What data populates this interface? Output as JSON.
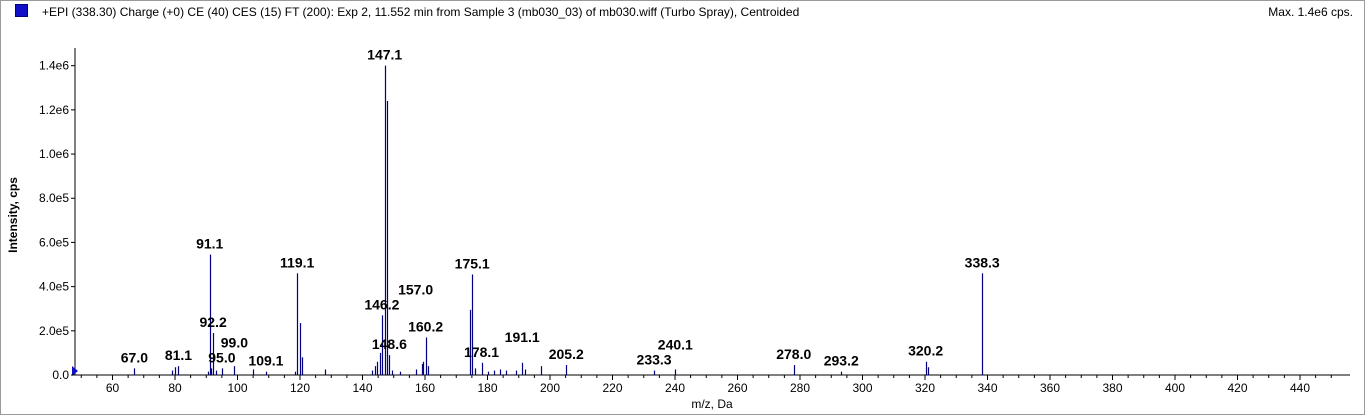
{
  "header": {
    "title": "+EPI (338.30) Charge (+0) CE (40) CES (15) FT (200): Exp 2, 11.552 min from Sample 3 (mb030_03) of mb030.wiff (Turbo Spray), Centroided",
    "max_text": "Max. 1.4e6 cps."
  },
  "colors": {
    "spectrum": "#000080",
    "legend": "#1010c8",
    "frame": "#9a9a9a"
  },
  "chart_data": {
    "type": "bar",
    "title": "+EPI (338.30) Charge (+0) CE (40) CES (15) FT (200): Exp 2, 11.552 min from Sample 3 (mb030_03) of mb030.wiff (Turbo Spray), Centroided",
    "xlabel": "m/z, Da",
    "ylabel": "Intensity, cps",
    "xlim": [
      48,
      456
    ],
    "ylim": [
      0,
      1480000.0
    ],
    "x_ticks": [
      60,
      80,
      100,
      120,
      140,
      160,
      180,
      200,
      220,
      240,
      260,
      280,
      300,
      320,
      340,
      360,
      380,
      400,
      420,
      440
    ],
    "x_tick_labels": [
      "60",
      "80",
      "100",
      "120",
      "140",
      "160",
      "180",
      "200",
      "220",
      "240",
      "260",
      "280",
      "300",
      "320",
      "340",
      "360",
      "380",
      "400",
      "420",
      "440"
    ],
    "y_ticks": [
      0,
      200000,
      400000,
      600000,
      800000,
      1000000,
      1200000,
      1400000
    ],
    "y_tick_labels": [
      "0.0",
      "2.0e5",
      "4.0e5",
      "6.0e5",
      "8.0e5",
      "1.0e6",
      "1.2e6",
      "1.4e6"
    ],
    "grid": false,
    "peaks": [
      {
        "mz": 67.0,
        "intensity": 30000
      },
      {
        "mz": 79.0,
        "intensity": 20000
      },
      {
        "mz": 80.0,
        "intensity": 35000
      },
      {
        "mz": 81.1,
        "intensity": 40000
      },
      {
        "mz": 90.5,
        "intensity": 15000
      },
      {
        "mz": 91.1,
        "intensity": 545000
      },
      {
        "mz": 91.6,
        "intensity": 30000
      },
      {
        "mz": 92.2,
        "intensity": 190000
      },
      {
        "mz": 93.0,
        "intensity": 20000
      },
      {
        "mz": 95.0,
        "intensity": 30000
      },
      {
        "mz": 99.0,
        "intensity": 40000
      },
      {
        "mz": 105.0,
        "intensity": 25000
      },
      {
        "mz": 109.1,
        "intensity": 15000
      },
      {
        "mz": 118.5,
        "intensity": 15000
      },
      {
        "mz": 119.1,
        "intensity": 460000
      },
      {
        "mz": 120.0,
        "intensity": 235000
      },
      {
        "mz": 120.5,
        "intensity": 80000
      },
      {
        "mz": 128.0,
        "intensity": 25000
      },
      {
        "mz": 143.0,
        "intensity": 20000
      },
      {
        "mz": 144.0,
        "intensity": 40000
      },
      {
        "mz": 144.6,
        "intensity": 60000
      },
      {
        "mz": 145.5,
        "intensity": 100000
      },
      {
        "mz": 146.2,
        "intensity": 270000
      },
      {
        "mz": 147.1,
        "intensity": 1400000
      },
      {
        "mz": 147.7,
        "intensity": 1240000
      },
      {
        "mz": 148.6,
        "intensity": 90000
      },
      {
        "mz": 149.5,
        "intensity": 20000
      },
      {
        "mz": 152.0,
        "intensity": 15000
      },
      {
        "mz": 157.0,
        "intensity": 25000
      },
      {
        "mz": 159.0,
        "intensity": 50000
      },
      {
        "mz": 159.5,
        "intensity": 60000
      },
      {
        "mz": 160.2,
        "intensity": 170000
      },
      {
        "mz": 161.0,
        "intensity": 40000
      },
      {
        "mz": 174.3,
        "intensity": 295000
      },
      {
        "mz": 175.1,
        "intensity": 455000
      },
      {
        "mz": 176.0,
        "intensity": 30000
      },
      {
        "mz": 178.1,
        "intensity": 55000
      },
      {
        "mz": 180.0,
        "intensity": 15000
      },
      {
        "mz": 182.0,
        "intensity": 20000
      },
      {
        "mz": 184.0,
        "intensity": 25000
      },
      {
        "mz": 186.0,
        "intensity": 20000
      },
      {
        "mz": 189.0,
        "intensity": 20000
      },
      {
        "mz": 191.1,
        "intensity": 55000
      },
      {
        "mz": 192.0,
        "intensity": 25000
      },
      {
        "mz": 197.0,
        "intensity": 40000
      },
      {
        "mz": 205.2,
        "intensity": 45000
      },
      {
        "mz": 233.3,
        "intensity": 20000
      },
      {
        "mz": 240.1,
        "intensity": 25000
      },
      {
        "mz": 278.0,
        "intensity": 45000
      },
      {
        "mz": 293.2,
        "intensity": 15000
      },
      {
        "mz": 320.2,
        "intensity": 60000
      },
      {
        "mz": 321.0,
        "intensity": 35000
      },
      {
        "mz": 338.3,
        "intensity": 460000
      }
    ],
    "annotations": [
      {
        "text": "147.1",
        "mz": 147.1,
        "intensity": 1400000
      },
      {
        "text": "91.1",
        "mz": 91.1,
        "intensity": 545000
      },
      {
        "text": "119.1",
        "mz": 119.1,
        "intensity": 460000
      },
      {
        "text": "175.1",
        "mz": 175.1,
        "intensity": 455000
      },
      {
        "text": "338.3",
        "mz": 338.3,
        "intensity": 460000
      },
      {
        "text": "146.2",
        "mz": 146.2,
        "intensity": 270000
      },
      {
        "text": "92.2",
        "mz": 92.2,
        "intensity": 190000
      },
      {
        "text": "160.2",
        "mz": 160.2,
        "intensity": 170000
      },
      {
        "text": "148.6",
        "mz": 148.6,
        "intensity": 90000
      },
      {
        "text": "67.0",
        "mz": 67.0,
        "intensity": 30000
      },
      {
        "text": "81.1",
        "mz": 81.1,
        "intensity": 40000
      },
      {
        "text": "95.0",
        "mz": 95.0,
        "intensity": 30000
      },
      {
        "text": "99.0",
        "mz": 99.0,
        "intensity": 40000
      },
      {
        "text": "109.1",
        "mz": 109.1,
        "intensity": 15000
      },
      {
        "text": "157.0",
        "mz": 157.0,
        "intensity": 25000
      },
      {
        "text": "178.1",
        "mz": 178.1,
        "intensity": 55000
      },
      {
        "text": "191.1",
        "mz": 191.1,
        "intensity": 55000
      },
      {
        "text": "205.2",
        "mz": 205.2,
        "intensity": 45000
      },
      {
        "text": "233.3",
        "mz": 233.3,
        "intensity": 20000
      },
      {
        "text": "240.1",
        "mz": 240.1,
        "intensity": 25000
      },
      {
        "text": "278.0",
        "mz": 278.0,
        "intensity": 45000
      },
      {
        "text": "293.2",
        "mz": 293.2,
        "intensity": 15000
      },
      {
        "text": "320.2",
        "mz": 320.2,
        "intensity": 60000
      }
    ]
  }
}
